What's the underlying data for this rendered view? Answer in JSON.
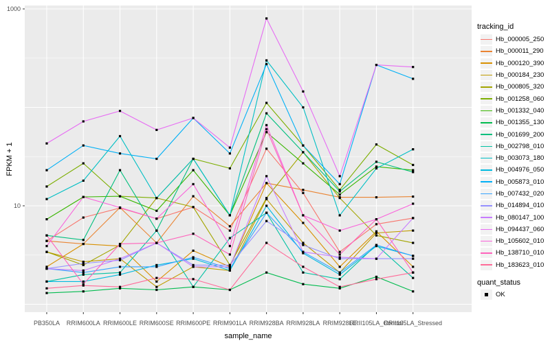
{
  "chart_data": {
    "type": "line",
    "title": "",
    "xlabel": "sample_name",
    "ylabel": "FPKM + 1",
    "y_scale": "log10",
    "ylim": [
      1,
      1000
    ],
    "grid": true,
    "legend_position": "right",
    "y_tick_labels": [
      "1000",
      "10"
    ],
    "y_tick_values": [
      1000,
      10
    ],
    "y_major_gridlines": [
      1000,
      100,
      10,
      1
    ],
    "y_minor_gridlines": [
      316.23,
      31.62,
      3.16
    ],
    "categories": [
      "PB350LA",
      "RRIM600LA",
      "RRIM600LE",
      "RRIM600SE",
      "RRIM600PE",
      "RRIM901LA",
      "RRIM928BA",
      "RRIM928LA",
      "RRIM928LE",
      "RRII105LA_Control",
      "RRII105LA_Stressed"
    ],
    "series": [
      {
        "name": "Hb_000005_250",
        "color": "#F8766D",
        "values": [
          4.4,
          7.6,
          9.5,
          7.4,
          9.7,
          5.6,
          38,
          13.5,
          3.4,
          6.5,
          7.5
        ]
      },
      {
        "name": "Hb_000011_290",
        "color": "#EA8331",
        "values": [
          4.4,
          4.1,
          9.6,
          4.2,
          12.5,
          6.2,
          17,
          14.5,
          12.2,
          12.2,
          12.4
        ]
      },
      {
        "name": "Hb_000120_390",
        "color": "#D89000",
        "values": [
          2.4,
          4.1,
          3.9,
          1.7,
          3.5,
          2.4,
          17,
          6.7,
          2.4,
          5.5,
          2.4
        ]
      },
      {
        "name": "Hb_000184_230",
        "color": "#C09B00",
        "values": [
          3.4,
          2.7,
          2.9,
          1.5,
          2.4,
          2.2,
          11.7,
          4.2,
          2.1,
          5.3,
          5.6
        ]
      },
      {
        "name": "Hb_000805_320",
        "color": "#A3A500",
        "values": [
          3.4,
          2.5,
          4.0,
          12,
          9.7,
          2.5,
          12,
          35,
          12,
          5.0,
          4.2
        ]
      },
      {
        "name": "Hb_001258_060",
        "color": "#7CAE00",
        "values": [
          15.7,
          27,
          12.5,
          12,
          30,
          24,
          111,
          41,
          14.5,
          42,
          26
        ]
      },
      {
        "name": "Hb_001332_040",
        "color": "#39B600",
        "values": [
          7.3,
          12.3,
          12.5,
          8.9,
          23,
          8,
          56,
          27,
          13,
          25,
          23
        ]
      },
      {
        "name": "Hb_001355_130",
        "color": "#00BB4E",
        "values": [
          1.3,
          1.35,
          1.45,
          1.4,
          1.5,
          1.4,
          2.1,
          1.6,
          1.45,
          1.9,
          1.35
        ]
      },
      {
        "name": "Hb_001699_200",
        "color": "#00BF7D",
        "values": [
          5.0,
          4.5,
          23,
          5.6,
          30,
          8,
          87,
          35,
          14,
          28,
          22
        ]
      },
      {
        "name": "Hb_002798_010",
        "color": "#00C1A3",
        "values": [
          1.7,
          2.0,
          2.1,
          5.6,
          1.5,
          4.7,
          8.5,
          2.1,
          1.8,
          4.0,
          1.85
        ]
      },
      {
        "name": "Hb_003073_180",
        "color": "#00BFC4",
        "values": [
          11.7,
          18,
          51,
          12,
          30,
          8,
          300,
          100,
          8,
          24,
          37.5
        ]
      },
      {
        "name": "Hb_004976_050",
        "color": "#00BAE0",
        "values": [
          1.7,
          1.7,
          2.0,
          2.5,
          2.9,
          2.2,
          10,
          3.3,
          2.0,
          3.9,
          3.1
        ]
      },
      {
        "name": "Hb_005873_010",
        "color": "#00B0F6",
        "values": [
          23,
          41,
          34,
          30,
          78,
          34,
          275,
          41,
          16.6,
          270,
          195
        ]
      },
      {
        "name": "Hb_007432_020",
        "color": "#35A2FF",
        "values": [
          2.3,
          2.1,
          2.4,
          2.4,
          3.0,
          2.3,
          8.5,
          3.4,
          2.1,
          4.0,
          3.1
        ]
      },
      {
        "name": "Hb_014894_010",
        "color": "#9590FF",
        "values": [
          2.3,
          2.6,
          2.8,
          4.2,
          2.5,
          2.5,
          7.0,
          4.0,
          2.9,
          2.9,
          2.9
        ]
      },
      {
        "name": "Hb_080147_100",
        "color": "#C77CFF",
        "values": [
          2.3,
          2.2,
          2.9,
          4.2,
          2.4,
          2.4,
          20,
          3.4,
          3.0,
          2.9,
          7.5
        ]
      },
      {
        "name": "Hb_094437_060",
        "color": "#E76BF3",
        "values": [
          43,
          72,
          92,
          59,
          78,
          39,
          800,
          145,
          20,
          270,
          257
        ]
      },
      {
        "name": "Hb_105602_010",
        "color": "#FA62DB",
        "values": [
          3.9,
          12.3,
          9.6,
          7.4,
          16.6,
          3.9,
          66,
          8.0,
          5.6,
          7.3,
          10.5
        ]
      },
      {
        "name": "Hb_138710_010",
        "color": "#FF62BC",
        "values": [
          5.0,
          1.6,
          4.1,
          4.2,
          5.2,
          3.2,
          60,
          8.0,
          3.2,
          7.3,
          2.1
        ]
      },
      {
        "name": "Hb_183623_010",
        "color": "#FF6A98",
        "values": [
          1.45,
          1.55,
          1.5,
          1.85,
          1.8,
          1.4,
          4.2,
          2.4,
          1.5,
          1.8,
          2.1
        ]
      }
    ],
    "legend": {
      "tracking_title": "tracking_id",
      "quant_title": "quant_status",
      "quant_value": "OK"
    }
  },
  "colors": {
    "panel_bg": "#EBEBEB",
    "gridline": "#FFFFFF",
    "axis_text": "#4D4D4D",
    "tick_mark": "#333333",
    "point": "#000000",
    "legend_key_bg": "#F2F2F2"
  }
}
